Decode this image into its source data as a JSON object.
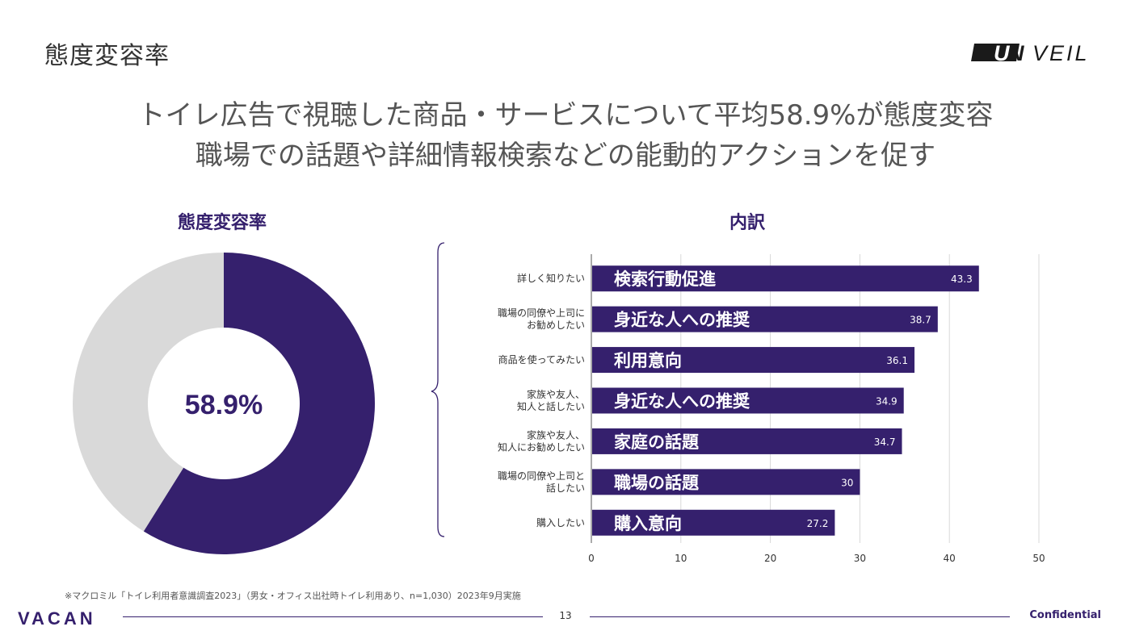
{
  "slide": {
    "title": "態度変容率",
    "headline_line1": "トイレ広告で視聴した商品・サービスについて平均58.9%が態度変容",
    "headline_line2": "職場での話題や詳細情報検索などの能動的アクションを促す",
    "footnote": "※マクロミル「トイレ利用者意識調査2023」（男女・オフィス出社時トイレ利用あり、n=1,030）2023年9月実施",
    "page_number": "13",
    "confidential": "Confidential",
    "logos": {
      "unveil": "UNVEIL",
      "vacan": "VACAN"
    }
  },
  "colors": {
    "accent": "#35206d",
    "donut_rest": "#d9d9d9",
    "grid": "#d9d9d9"
  },
  "chart_data": [
    {
      "type": "pie",
      "title": "態度変容率",
      "center_label": "58.9%",
      "slices": [
        {
          "name": "",
          "value": 58.9
        },
        {
          "name": "",
          "value": 41.1
        }
      ]
    },
    {
      "type": "bar",
      "orientation": "horizontal",
      "title": "内訳",
      "categories": [
        [
          "詳しく知りたい"
        ],
        [
          "職場の同僚や上司に",
          "お勧めしたい"
        ],
        [
          "商品を使ってみたい"
        ],
        [
          "家族や友人、",
          "知人と話したい"
        ],
        [
          "家族や友人、",
          "知人にお勧めしたい"
        ],
        [
          "職場の同僚や上司と",
          "話したい"
        ],
        [
          "購入したい"
        ]
      ],
      "bar_labels": [
        "検索行動促進",
        "身近な人への推奨",
        "利用意向",
        "身近な人への推奨",
        "家庭の話題",
        "職場の話題",
        "購入意向"
      ],
      "values": [
        43.3,
        38.7,
        36.1,
        34.9,
        34.7,
        30,
        27.2
      ],
      "value_labels": [
        "43.3",
        "38.7",
        "36.1",
        "34.9",
        "34.7",
        "30",
        "27.2"
      ],
      "xlim": [
        0,
        50
      ],
      "xticks": [
        0,
        10,
        20,
        30,
        40,
        50
      ],
      "grid": true
    }
  ]
}
